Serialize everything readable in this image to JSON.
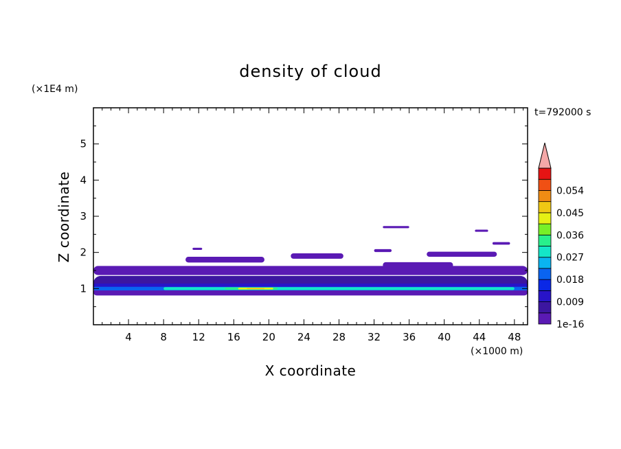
{
  "chart_data": {
    "type": "contour",
    "title": "density of cloud",
    "xlabel": "X coordinate",
    "ylabel": "Z coordinate",
    "x_unit": "(×1000 m)",
    "y_unit": "(×1E4 m)",
    "time_label": "t=792000 s",
    "xlim": [
      0,
      49.5
    ],
    "ylim": [
      0,
      6
    ],
    "x_ticks": [
      4,
      8,
      12,
      16,
      20,
      24,
      28,
      32,
      36,
      40,
      44,
      48
    ],
    "y_ticks": [
      1,
      2,
      3,
      4,
      5
    ],
    "colorbar": {
      "labels": [
        "1e-16",
        "0.009",
        "0.018",
        "0.027",
        "0.036",
        "0.045",
        "0.054"
      ],
      "levels": 13,
      "colors": [
        "#5a1ab4",
        "#3c16a0",
        "#2814c8",
        "#0a28e6",
        "#0a64f0",
        "#0ab4f0",
        "#14e6c8",
        "#28f08c",
        "#78f028",
        "#e6f014",
        "#f0c814",
        "#f08c14",
        "#f05014",
        "#e61414"
      ],
      "extend_color": "#f4a8a8"
    },
    "regions": [
      {
        "level": 0,
        "z": 0.9,
        "x0": 0,
        "x1": 49.5,
        "h": 0.18
      },
      {
        "level": 1,
        "z": 1.15,
        "x0": 0,
        "x1": 49.5,
        "h": 0.4
      },
      {
        "level": 0,
        "z": 1.5,
        "x0": 0,
        "x1": 49.5,
        "h": 0.25
      },
      {
        "level": 0,
        "z": 1.8,
        "x0": 10.5,
        "x1": 19.5,
        "h": 0.16
      },
      {
        "level": 0,
        "z": 1.9,
        "x0": 22.5,
        "x1": 28.5,
        "h": 0.15
      },
      {
        "level": 0,
        "z": 1.65,
        "x0": 33,
        "x1": 41,
        "h": 0.16
      },
      {
        "level": 0,
        "z": 1.95,
        "x0": 38,
        "x1": 46,
        "h": 0.14
      },
      {
        "level": 0,
        "z": 2.05,
        "x0": 32,
        "x1": 34,
        "h": 0.08
      },
      {
        "level": 0,
        "z": 2.25,
        "x0": 45.5,
        "x1": 47.5,
        "h": 0.07
      },
      {
        "level": 0,
        "z": 2.6,
        "x0": 43.5,
        "x1": 45,
        "h": 0.06
      },
      {
        "level": 0,
        "z": 2.7,
        "x0": 33,
        "x1": 36,
        "h": 0.06
      },
      {
        "level": 0,
        "z": 2.1,
        "x0": 11.3,
        "x1": 12.4,
        "h": 0.06
      },
      {
        "level": 2,
        "z": 1.08,
        "x0": 0,
        "x1": 49.5,
        "h": 0.12
      },
      {
        "level": 4,
        "z": 1.0,
        "x0": 0,
        "x1": 49.5,
        "h": 0.1
      },
      {
        "level": 6,
        "z": 1.0,
        "x0": 8,
        "x1": 48,
        "h": 0.08
      },
      {
        "level": 7,
        "z": 1.0,
        "x0": 15,
        "x1": 21,
        "h": 0.06
      },
      {
        "level": 9,
        "z": 1.0,
        "x0": 16.5,
        "x1": 20.5,
        "h": 0.05
      },
      {
        "level": 10,
        "z": 1.0,
        "x0": 17.5,
        "x1": 19.5,
        "h": 0.035
      }
    ]
  }
}
